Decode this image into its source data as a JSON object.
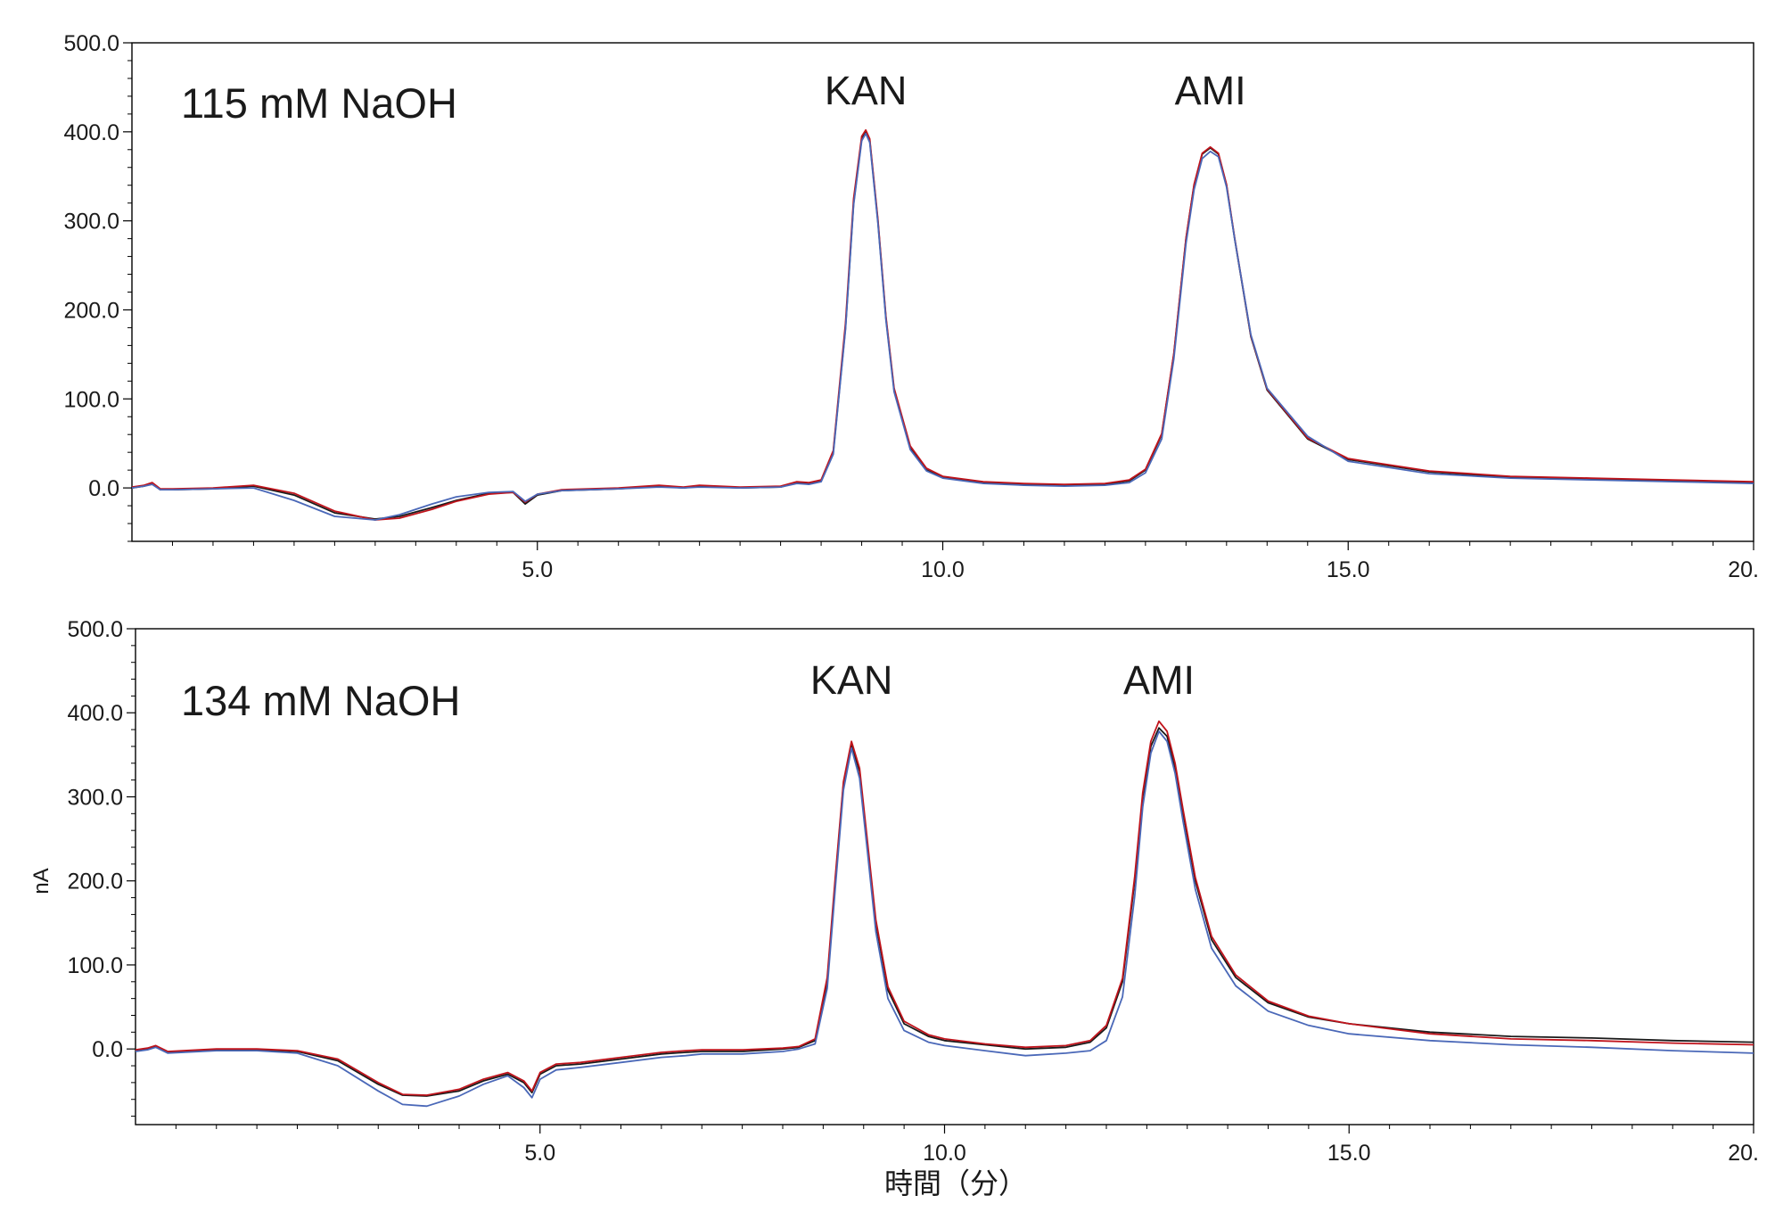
{
  "chart_data": [
    {
      "type": "line",
      "annotation": "115 mM NaOH",
      "peak_labels": [
        {
          "text": "KAN",
          "x": 9.05
        },
        {
          "text": "AMI",
          "x": 13.3
        }
      ],
      "xlim": [
        0,
        20
      ],
      "ylim": [
        -60,
        500
      ],
      "xticks": [
        {
          "value": 5,
          "label": "5.0"
        },
        {
          "value": 10,
          "label": "10.0"
        },
        {
          "value": 15,
          "label": "15.0"
        },
        {
          "value": 20,
          "label": "20."
        }
      ],
      "yticks": [
        {
          "value": 0,
          "label": "0.0"
        },
        {
          "value": 100,
          "label": "100.0"
        },
        {
          "value": 200,
          "label": "200.0"
        },
        {
          "value": 300,
          "label": "300.0"
        },
        {
          "value": 400,
          "label": "400.0"
        },
        {
          "value": 500,
          "label": "500.0"
        }
      ],
      "series": [
        {
          "color": "#1a1a1a",
          "x": [
            0,
            0.15,
            0.25,
            0.35,
            0.5,
            1.0,
            1.5,
            2.0,
            2.5,
            3.0,
            3.3,
            3.7,
            4.0,
            4.4,
            4.7,
            4.85,
            5.0,
            5.3,
            6.0,
            6.5,
            6.8,
            7.0,
            7.5,
            8.0,
            8.2,
            8.35,
            8.5,
            8.65,
            8.8,
            8.9,
            9.0,
            9.05,
            9.1,
            9.2,
            9.3,
            9.4,
            9.6,
            9.8,
            10.0,
            10.5,
            11.0,
            11.5,
            12.0,
            12.3,
            12.5,
            12.7,
            12.85,
            13.0,
            13.1,
            13.2,
            13.3,
            13.4,
            13.5,
            13.6,
            13.8,
            14.0,
            14.5,
            15.0,
            16.0,
            17.0,
            18.0,
            19.0,
            20.0
          ],
          "y": [
            0,
            2,
            5,
            -2,
            -2,
            -1,
            2,
            -8,
            -28,
            -35,
            -32,
            -22,
            -14,
            -6,
            -5,
            -18,
            -8,
            -3,
            -1,
            2,
            0,
            2,
            0,
            1,
            6,
            5,
            8,
            40,
            180,
            320,
            392,
            400,
            390,
            300,
            190,
            110,
            45,
            20,
            12,
            6,
            4,
            3,
            4,
            8,
            20,
            60,
            150,
            280,
            340,
            375,
            382,
            375,
            340,
            280,
            170,
            110,
            55,
            32,
            18,
            12,
            10,
            8,
            6
          ]
        },
        {
          "color": "#c0141c",
          "x": [
            0,
            0.15,
            0.25,
            0.35,
            0.5,
            1.0,
            1.5,
            2.0,
            2.5,
            3.0,
            3.3,
            3.7,
            4.0,
            4.4,
            4.7,
            4.85,
            5.0,
            5.3,
            6.0,
            6.5,
            6.8,
            7.0,
            7.5,
            8.0,
            8.2,
            8.35,
            8.5,
            8.65,
            8.8,
            8.9,
            9.0,
            9.05,
            9.1,
            9.2,
            9.3,
            9.4,
            9.6,
            9.8,
            10.0,
            10.5,
            11.0,
            11.5,
            12.0,
            12.3,
            12.5,
            12.7,
            12.85,
            13.0,
            13.1,
            13.2,
            13.3,
            13.4,
            13.5,
            13.6,
            13.8,
            14.0,
            14.5,
            15.0,
            16.0,
            17.0,
            18.0,
            19.0,
            20.0
          ],
          "y": [
            1,
            3,
            6,
            -1,
            -1,
            0,
            3,
            -6,
            -26,
            -36,
            -34,
            -24,
            -15,
            -7,
            -5,
            -16,
            -7,
            -2,
            0,
            3,
            1,
            3,
            1,
            2,
            7,
            6,
            9,
            42,
            185,
            325,
            395,
            402,
            392,
            302,
            192,
            112,
            47,
            22,
            13,
            7,
            5,
            4,
            5,
            9,
            21,
            61,
            151,
            281,
            341,
            376,
            383,
            376,
            341,
            281,
            171,
            111,
            56,
            33,
            19,
            13,
            11,
            9,
            7
          ]
        },
        {
          "color": "#4a68b8",
          "x": [
            0,
            0.15,
            0.25,
            0.35,
            0.5,
            1.0,
            1.5,
            2.0,
            2.5,
            3.0,
            3.3,
            3.7,
            4.0,
            4.4,
            4.7,
            4.85,
            5.0,
            5.3,
            6.0,
            6.5,
            6.8,
            7.0,
            7.5,
            8.0,
            8.2,
            8.35,
            8.5,
            8.65,
            8.8,
            8.9,
            9.0,
            9.05,
            9.1,
            9.2,
            9.3,
            9.4,
            9.6,
            9.8,
            10.0,
            10.5,
            11.0,
            11.5,
            12.0,
            12.3,
            12.5,
            12.7,
            12.85,
            13.0,
            13.1,
            13.2,
            13.3,
            13.4,
            13.5,
            13.6,
            13.8,
            14.0,
            14.5,
            15.0,
            16.0,
            17.0,
            18.0,
            19.0,
            20.0
          ],
          "y": [
            0,
            2,
            4,
            -2,
            -2,
            -1,
            0,
            -14,
            -32,
            -36,
            -30,
            -18,
            -10,
            -5,
            -4,
            -15,
            -7,
            -3,
            -1,
            1,
            0,
            1,
            0,
            1,
            5,
            4,
            7,
            38,
            178,
            318,
            390,
            398,
            388,
            298,
            188,
            108,
            43,
            19,
            11,
            5,
            3,
            2,
            3,
            6,
            17,
            55,
            145,
            275,
            335,
            370,
            378,
            372,
            338,
            280,
            172,
            112,
            58,
            30,
            16,
            11,
            9,
            7,
            5
          ]
        }
      ]
    },
    {
      "type": "line",
      "annotation": "134 mM NaOH",
      "peak_labels": [
        {
          "text": "KAN",
          "x": 8.85
        },
        {
          "text": "AMI",
          "x": 12.65
        }
      ],
      "xlabel": "時間（分）",
      "ylabel": "nA",
      "xlim": [
        0,
        20
      ],
      "ylim": [
        -90,
        500
      ],
      "xticks": [
        {
          "value": 5,
          "label": "5.0"
        },
        {
          "value": 10,
          "label": "10.0"
        },
        {
          "value": 15,
          "label": "15.0"
        },
        {
          "value": 20,
          "label": "20."
        }
      ],
      "yticks": [
        {
          "value": 0,
          "label": "0.0"
        },
        {
          "value": 100,
          "label": "100.0"
        },
        {
          "value": 200,
          "label": "200.0"
        },
        {
          "value": 300,
          "label": "300.0"
        },
        {
          "value": 400,
          "label": "400.0"
        },
        {
          "value": 500,
          "label": "500.0"
        }
      ],
      "series": [
        {
          "color": "#1a1a1a",
          "x": [
            0,
            0.15,
            0.25,
            0.4,
            1.0,
            1.5,
            2.0,
            2.5,
            3.0,
            3.3,
            3.6,
            4.0,
            4.3,
            4.6,
            4.8,
            4.9,
            5.0,
            5.2,
            5.5,
            6.0,
            6.5,
            6.8,
            7.0,
            7.5,
            8.0,
            8.2,
            8.4,
            8.55,
            8.65,
            8.75,
            8.85,
            8.95,
            9.05,
            9.15,
            9.3,
            9.5,
            9.8,
            10.0,
            10.5,
            11.0,
            11.5,
            11.8,
            12.0,
            12.2,
            12.35,
            12.45,
            12.55,
            12.65,
            12.75,
            12.85,
            12.95,
            13.1,
            13.3,
            13.6,
            14.0,
            14.5,
            15.0,
            16.0,
            17.0,
            18.0,
            19.0,
            20.0
          ],
          "y": [
            -2,
            0,
            3,
            -4,
            -1,
            -1,
            -3,
            -14,
            -42,
            -55,
            -56,
            -50,
            -38,
            -30,
            -40,
            -52,
            -30,
            -20,
            -18,
            -12,
            -6,
            -4,
            -3,
            -3,
            0,
            2,
            10,
            80,
            200,
            315,
            362,
            330,
            240,
            150,
            70,
            30,
            15,
            10,
            5,
            0,
            2,
            8,
            25,
            80,
            200,
            300,
            360,
            382,
            372,
            335,
            280,
            200,
            130,
            85,
            55,
            38,
            30,
            20,
            15,
            13,
            10,
            8
          ]
        },
        {
          "color": "#c0141c",
          "x": [
            0,
            0.15,
            0.25,
            0.4,
            1.0,
            1.5,
            2.0,
            2.5,
            3.0,
            3.3,
            3.6,
            4.0,
            4.3,
            4.6,
            4.8,
            4.9,
            5.0,
            5.2,
            5.5,
            6.0,
            6.5,
            6.8,
            7.0,
            7.5,
            8.0,
            8.2,
            8.4,
            8.55,
            8.65,
            8.75,
            8.85,
            8.95,
            9.05,
            9.15,
            9.3,
            9.5,
            9.8,
            10.0,
            10.5,
            11.0,
            11.5,
            11.8,
            12.0,
            12.2,
            12.35,
            12.45,
            12.55,
            12.65,
            12.75,
            12.85,
            12.95,
            13.1,
            13.3,
            13.6,
            14.0,
            14.5,
            15.0,
            16.0,
            17.0,
            18.0,
            19.0,
            20.0
          ],
          "y": [
            -1,
            1,
            4,
            -3,
            0,
            0,
            -2,
            -12,
            -40,
            -54,
            -55,
            -48,
            -36,
            -28,
            -38,
            -50,
            -28,
            -18,
            -16,
            -10,
            -4,
            -2,
            -1,
            -1,
            1,
            3,
            12,
            85,
            205,
            318,
            366,
            334,
            244,
            154,
            74,
            33,
            17,
            12,
            6,
            2,
            4,
            10,
            28,
            84,
            205,
            305,
            366,
            390,
            378,
            340,
            284,
            204,
            134,
            88,
            57,
            39,
            30,
            18,
            12,
            10,
            7,
            5
          ]
        },
        {
          "color": "#4a68b8",
          "x": [
            0,
            0.15,
            0.25,
            0.4,
            1.0,
            1.5,
            2.0,
            2.5,
            3.0,
            3.3,
            3.6,
            4.0,
            4.3,
            4.6,
            4.8,
            4.9,
            5.0,
            5.2,
            5.5,
            6.0,
            6.5,
            6.8,
            7.0,
            7.5,
            8.0,
            8.2,
            8.4,
            8.55,
            8.65,
            8.75,
            8.85,
            8.95,
            9.05,
            9.15,
            9.3,
            9.5,
            9.8,
            10.0,
            10.5,
            11.0,
            11.5,
            11.8,
            12.0,
            12.2,
            12.35,
            12.45,
            12.55,
            12.65,
            12.75,
            12.85,
            12.95,
            13.1,
            13.3,
            13.6,
            14.0,
            14.5,
            15.0,
            16.0,
            17.0,
            18.0,
            19.0,
            20.0
          ],
          "y": [
            -3,
            -1,
            2,
            -5,
            -2,
            -2,
            -5,
            -20,
            -50,
            -66,
            -68,
            -56,
            -42,
            -32,
            -46,
            -58,
            -36,
            -25,
            -22,
            -16,
            -10,
            -8,
            -6,
            -6,
            -3,
            0,
            6,
            72,
            192,
            308,
            358,
            322,
            232,
            140,
            60,
            22,
            8,
            4,
            -2,
            -8,
            -5,
            -2,
            10,
            62,
            182,
            288,
            352,
            378,
            366,
            328,
            270,
            190,
            120,
            75,
            45,
            28,
            18,
            10,
            5,
            2,
            -2,
            -5
          ]
        }
      ]
    }
  ]
}
